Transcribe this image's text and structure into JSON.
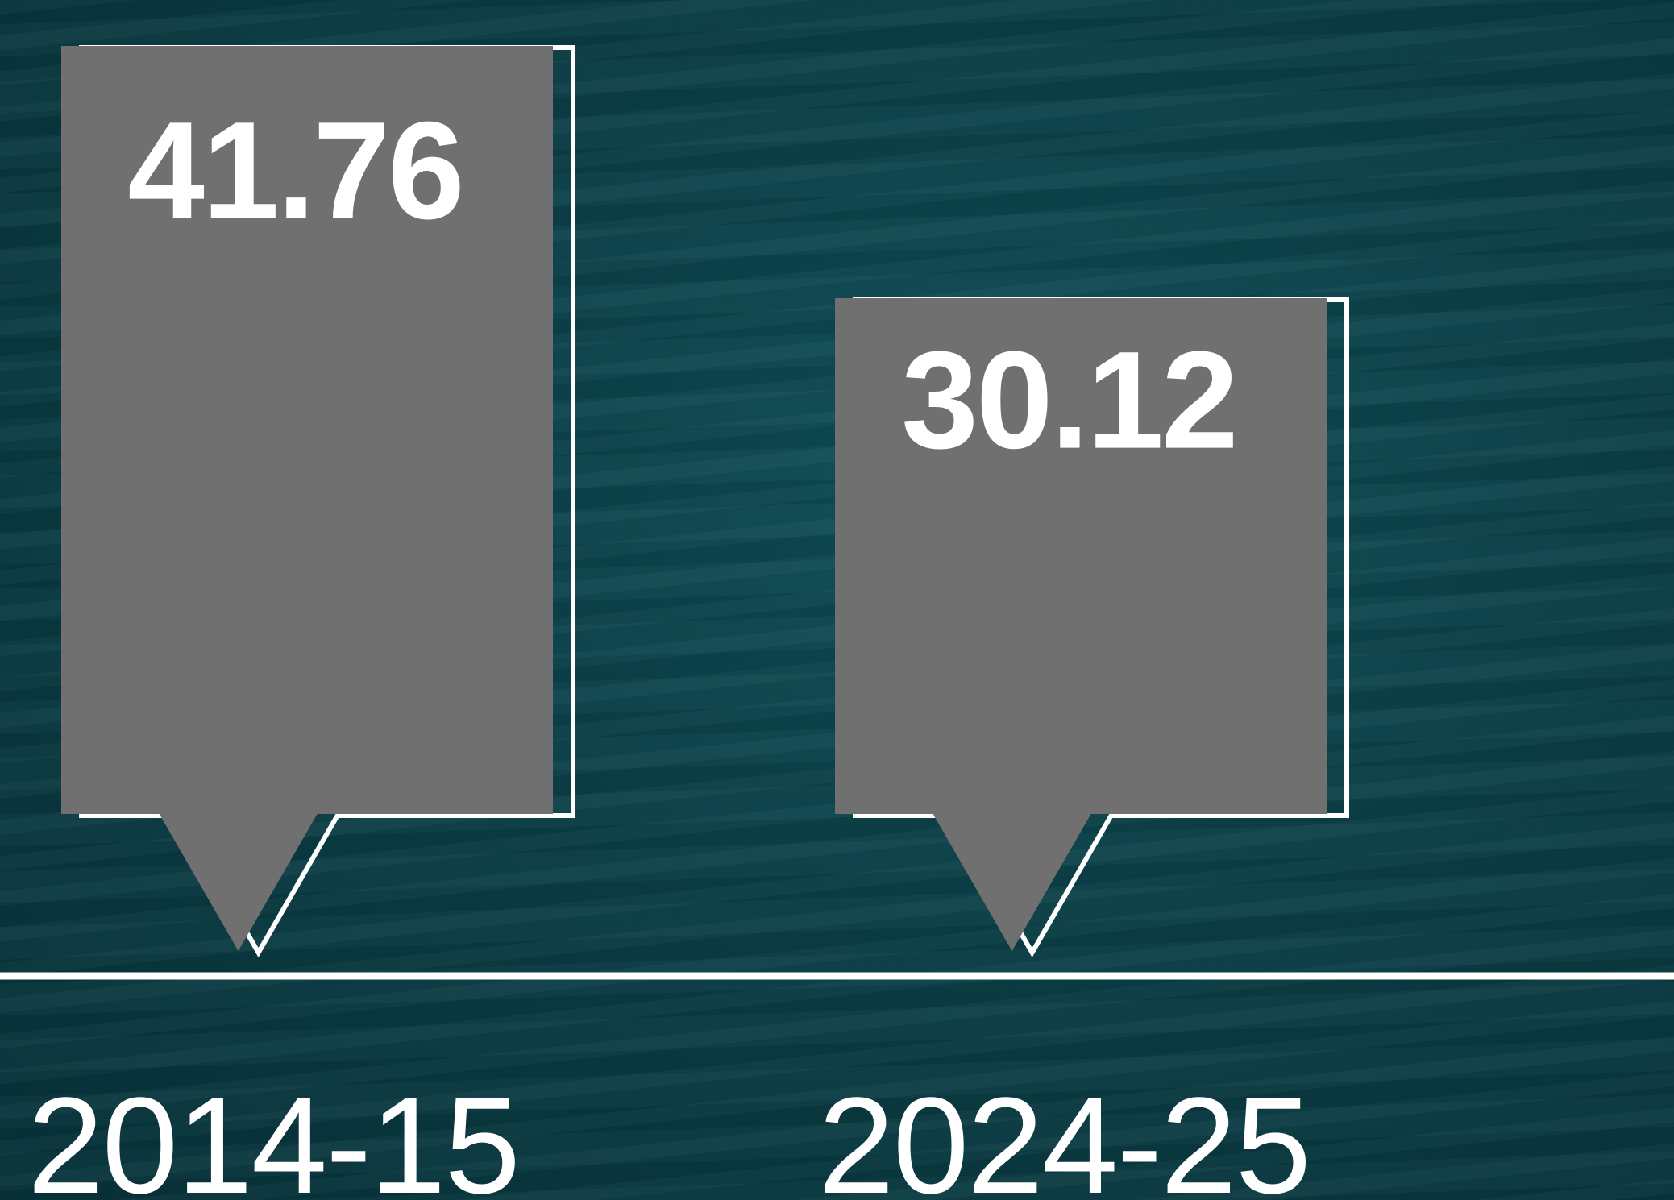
{
  "chart_data": {
    "type": "bar",
    "categories": [
      "2014-15",
      "2024-25"
    ],
    "values": [
      41.76,
      30.12
    ],
    "value_labels": [
      "41.76",
      "30.12"
    ],
    "title": "",
    "xlabel": "",
    "ylabel": "",
    "ylim": [
      0,
      41.76
    ],
    "grid": false,
    "legend": "none"
  },
  "colors": {
    "bar_fill": "#707070",
    "outline": "#ffffff",
    "text": "#ffffff",
    "background": "#0b3f47"
  }
}
